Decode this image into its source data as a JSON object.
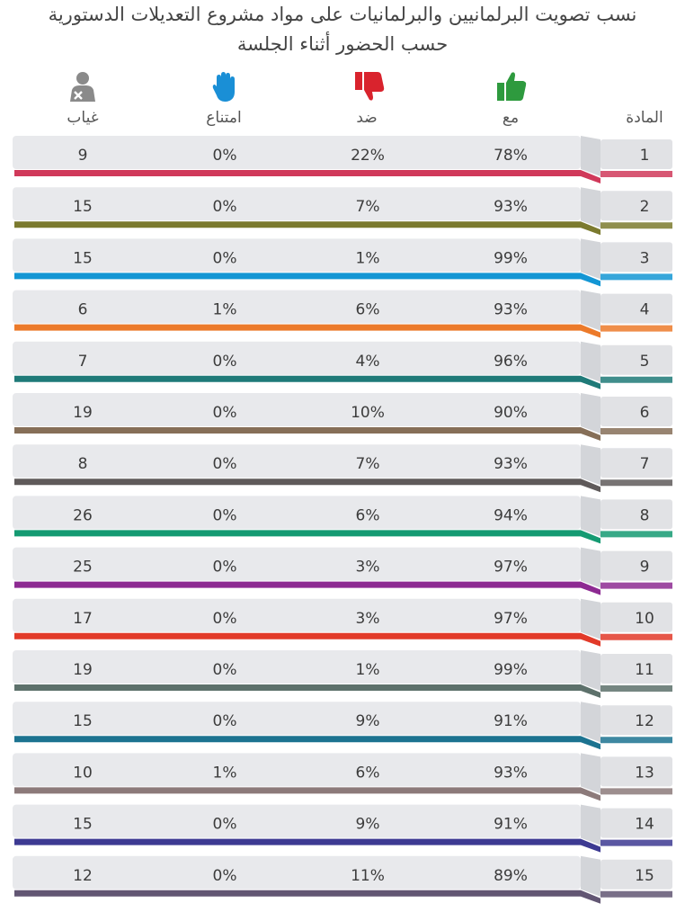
{
  "title_line1": "نسب تصويت البرلمانيين والبرلمانيات على مواد مشروع التعديلات الدستورية",
  "title_line2": "حسب الحضور أثناء الجلسة",
  "columns": {
    "article": "المادة",
    "for": "مع",
    "against": "ضد",
    "abstain": "امتناع",
    "absent": "غياب"
  },
  "icons": {
    "for": "thumbs-up-icon",
    "against": "thumbs-down-icon",
    "abstain": "raised-hand-icon",
    "absent": "absent-person-icon"
  },
  "icon_colors": {
    "for": "#2e9a3e",
    "against": "#d9232d",
    "abstain": "#1a8fd6",
    "absent": "#8a8a8a"
  },
  "chart_data": {
    "type": "table",
    "rows": [
      {
        "article": "1",
        "for": "78%",
        "against": "22%",
        "abstain": "0%",
        "absent": "9",
        "color": "#d0395a"
      },
      {
        "article": "2",
        "for": "93%",
        "against": "7%",
        "abstain": "0%",
        "absent": "15",
        "color": "#7b7a2e"
      },
      {
        "article": "3",
        "for": "99%",
        "against": "1%",
        "abstain": "0%",
        "absent": "15",
        "color": "#1396d4"
      },
      {
        "article": "4",
        "for": "93%",
        "against": "6%",
        "abstain": "1%",
        "absent": "6",
        "color": "#ec7a2a"
      },
      {
        "article": "5",
        "for": "96%",
        "against": "4%",
        "abstain": "0%",
        "absent": "7",
        "color": "#1f7a78"
      },
      {
        "article": "6",
        "for": "90%",
        "against": "10%",
        "abstain": "0%",
        "absent": "19",
        "color": "#866f58"
      },
      {
        "article": "7",
        "for": "93%",
        "against": "7%",
        "abstain": "0%",
        "absent": "8",
        "color": "#5f5a5a"
      },
      {
        "article": "8",
        "for": "94%",
        "against": "6%",
        "abstain": "0%",
        "absent": "26",
        "color": "#159a72"
      },
      {
        "article": "9",
        "for": "97%",
        "against": "3%",
        "abstain": "0%",
        "absent": "25",
        "color": "#8d2a92"
      },
      {
        "article": "10",
        "for": "97%",
        "against": "3%",
        "abstain": "0%",
        "absent": "17",
        "color": "#e23a29"
      },
      {
        "article": "11",
        "for": "99%",
        "against": "1%",
        "abstain": "0%",
        "absent": "19",
        "color": "#5d716b"
      },
      {
        "article": "12",
        "for": "91%",
        "against": "9%",
        "abstain": "0%",
        "absent": "15",
        "color": "#1c7390"
      },
      {
        "article": "13",
        "for": "93%",
        "against": "6%",
        "abstain": "1%",
        "absent": "10",
        "color": "#8c7a7a"
      },
      {
        "article": "14",
        "for": "91%",
        "against": "9%",
        "abstain": "0%",
        "absent": "15",
        "color": "#3d3a92"
      },
      {
        "article": "15",
        "for": "89%",
        "against": "11%",
        "abstain": "0%",
        "absent": "12",
        "color": "#625673"
      }
    ]
  }
}
